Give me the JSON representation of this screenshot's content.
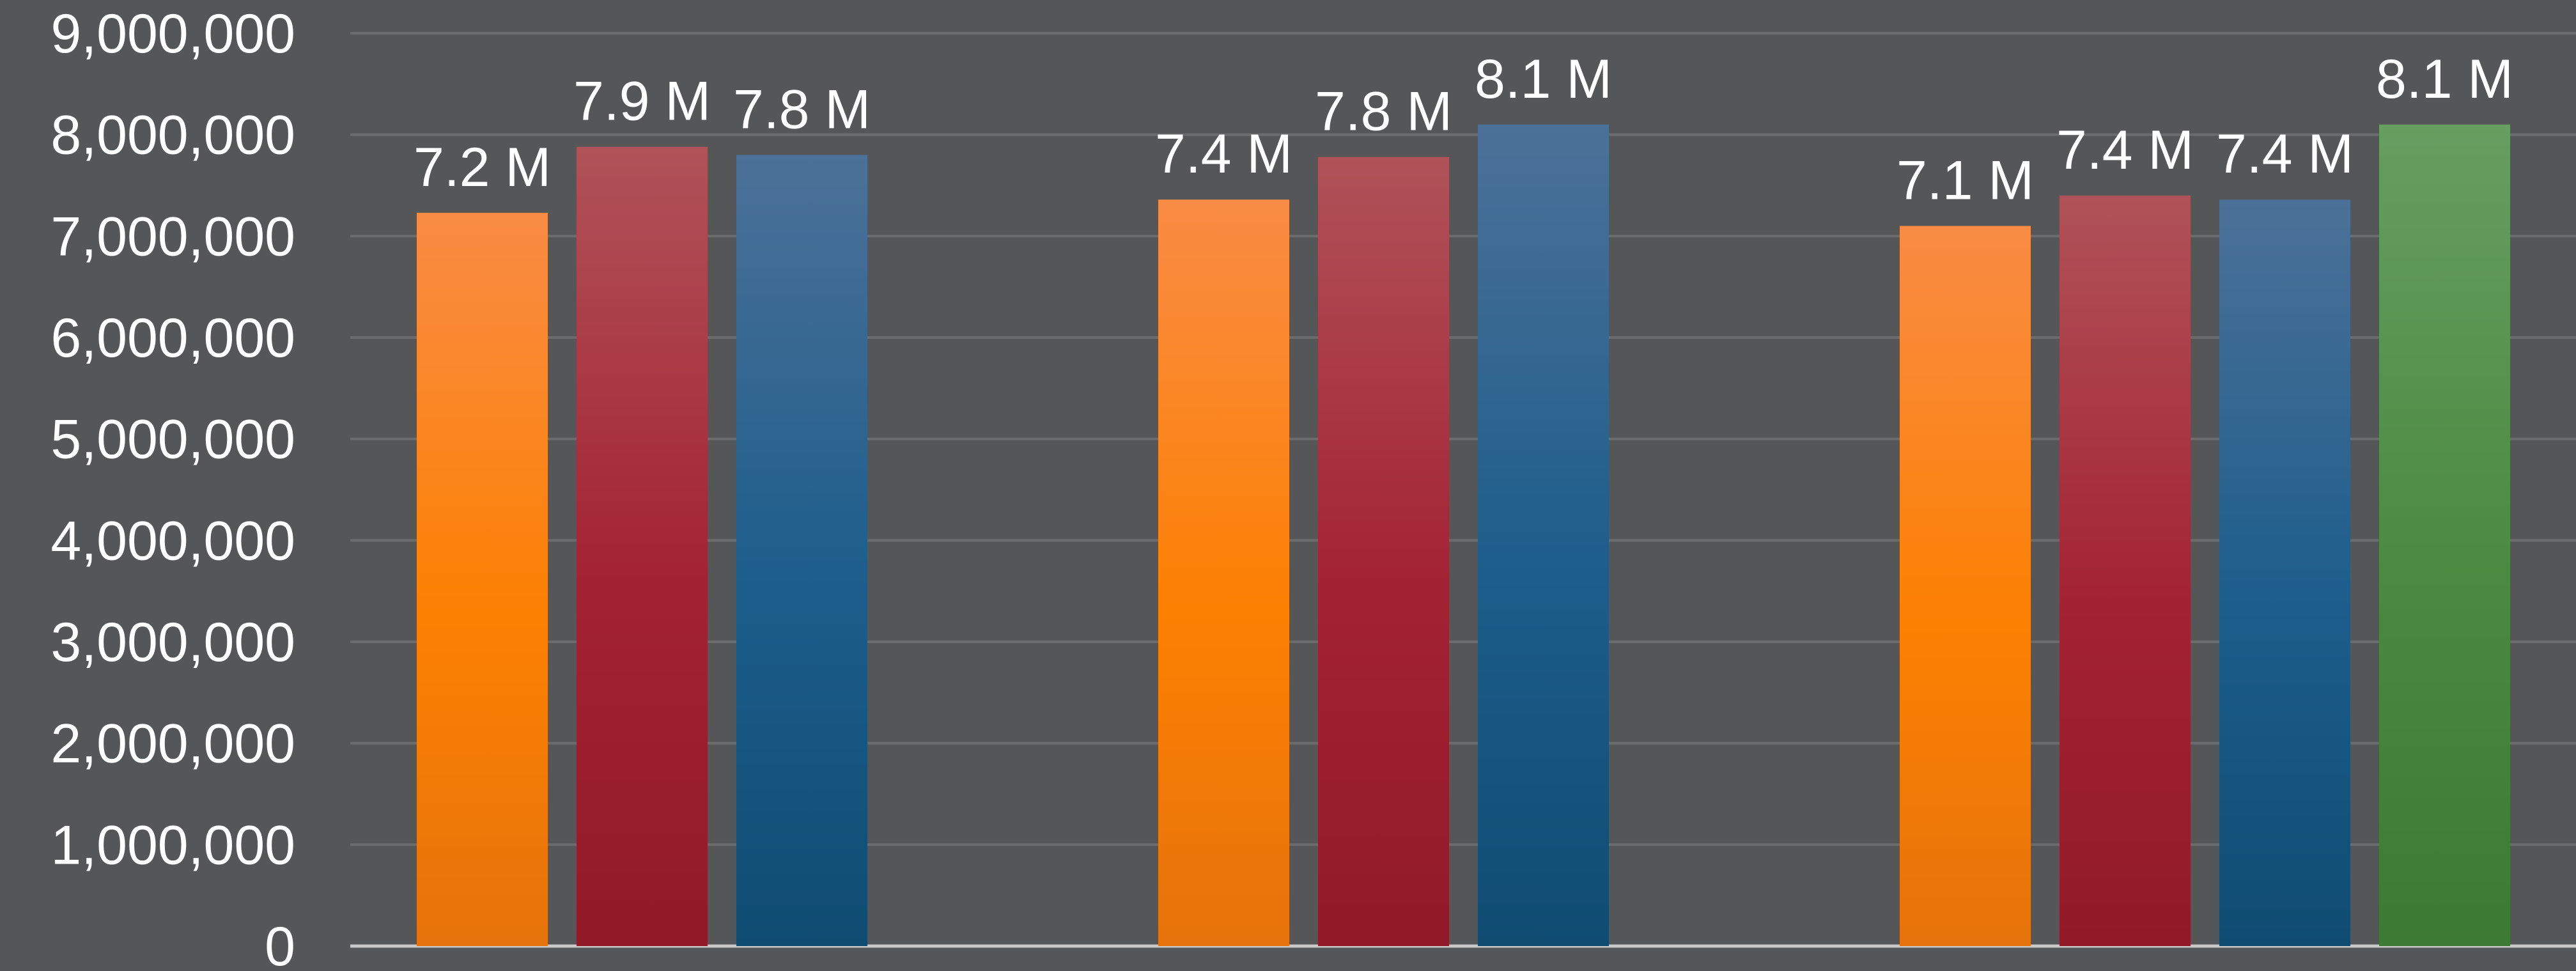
{
  "chart_data": {
    "type": "bar",
    "title": "",
    "xlabel": "",
    "ylabel": "",
    "ylim": [
      0,
      9000000
    ],
    "yticks": [
      0,
      1000000,
      2000000,
      3000000,
      4000000,
      5000000,
      6000000,
      7000000,
      8000000,
      9000000
    ],
    "ytick_labels": [
      "0",
      "1,000,000",
      "2,000,000",
      "3,000,000",
      "4,000,000",
      "5,000,000",
      "6,000,000",
      "7,000,000",
      "8,000,000",
      "9,000,000"
    ],
    "grid": true,
    "legend": "none",
    "groups": [
      {
        "bars": [
          {
            "value": 7230000,
            "label": "7.2 M",
            "color": "orange"
          },
          {
            "value": 7880000,
            "label": "7.9 M",
            "color": "red"
          },
          {
            "value": 7800000,
            "label": "7.8 M",
            "color": "blue"
          }
        ]
      },
      {
        "bars": [
          {
            "value": 7360000,
            "label": "7.4 M",
            "color": "orange"
          },
          {
            "value": 7780000,
            "label": "7.8 M",
            "color": "red"
          },
          {
            "value": 8100000,
            "label": "8.1 M",
            "color": "blue"
          }
        ]
      },
      {
        "bars": [
          {
            "value": 7100000,
            "label": "7.1 M",
            "color": "orange"
          },
          {
            "value": 7400000,
            "label": "7.4 M",
            "color": "red"
          },
          {
            "value": 7360000,
            "label": "7.4 M",
            "color": "blue"
          },
          {
            "value": 8100000,
            "label": "8.1 M",
            "color": "green"
          }
        ]
      }
    ]
  },
  "colors": {
    "background": "#555658",
    "grid": "#6b6c6e",
    "axis": "#c8c8c8",
    "text": "#ffffff",
    "orange_top": "#f98c45",
    "orange_mid": "#fc8002",
    "orange_bottom": "#e6730b",
    "red_top": "#b05259",
    "red_mid": "#a32233",
    "red_bottom": "#911a28",
    "blue_top": "#4c7198",
    "blue_mid": "#1c5d8b",
    "blue_bottom": "#104c72",
    "green_top": "#679e61",
    "green_mid": "#4b8a40",
    "green_bottom": "#3d7a33"
  }
}
